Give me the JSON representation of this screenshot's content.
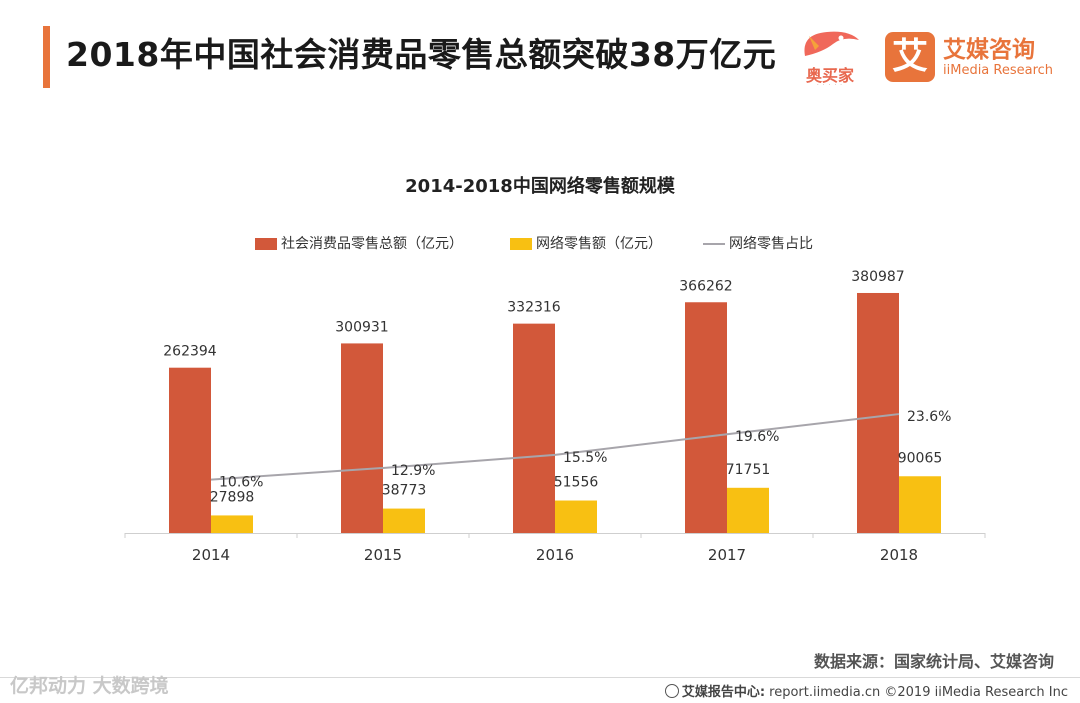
{
  "page": {
    "title": "2018年中国社会消费品零售总额突破38万亿元",
    "logo_aomaijia": "奥买家",
    "logo_iimedia_mark": "艾",
    "logo_iimedia_cn": "艾媒咨询",
    "logo_iimedia_en": "iiMedia Research",
    "source": "数据来源：国家统计局、艾媒咨询",
    "footer_center": "艾媒报告中心:",
    "footer_url": "report.iimedia.cn",
    "footer_copy": "©2019  iiMedia Research  Inc",
    "watermark": "亿邦动力 大数跨境"
  },
  "colors": {
    "accent": "#e8743b",
    "series_total": "#d2583a",
    "series_online": "#f8c012",
    "series_ratio": "#a7a5ab"
  },
  "chart_data": {
    "type": "bar",
    "title": "2014-2018中国网络零售额规模",
    "categories": [
      "2014",
      "2015",
      "2016",
      "2017",
      "2018"
    ],
    "series": [
      {
        "name": "社会消费品零售总额（亿元）",
        "type": "bar",
        "values": [
          262394,
          300931,
          332316,
          366262,
          380987
        ]
      },
      {
        "name": "网络零售额（亿元）",
        "type": "bar",
        "values": [
          27898,
          38773,
          51556,
          71751,
          90065
        ]
      },
      {
        "name": "网络零售占比",
        "type": "line",
        "values": [
          10.6,
          12.9,
          15.5,
          19.6,
          23.6
        ],
        "labels": [
          "10.6%",
          "12.9%",
          "15.5%",
          "19.6%",
          "23.6%"
        ],
        "ylim": [
          0,
          50
        ]
      }
    ],
    "ylim": [
      0,
      400000
    ],
    "xlabel": "",
    "ylabel": "",
    "legend_position": "top",
    "grid": false
  }
}
